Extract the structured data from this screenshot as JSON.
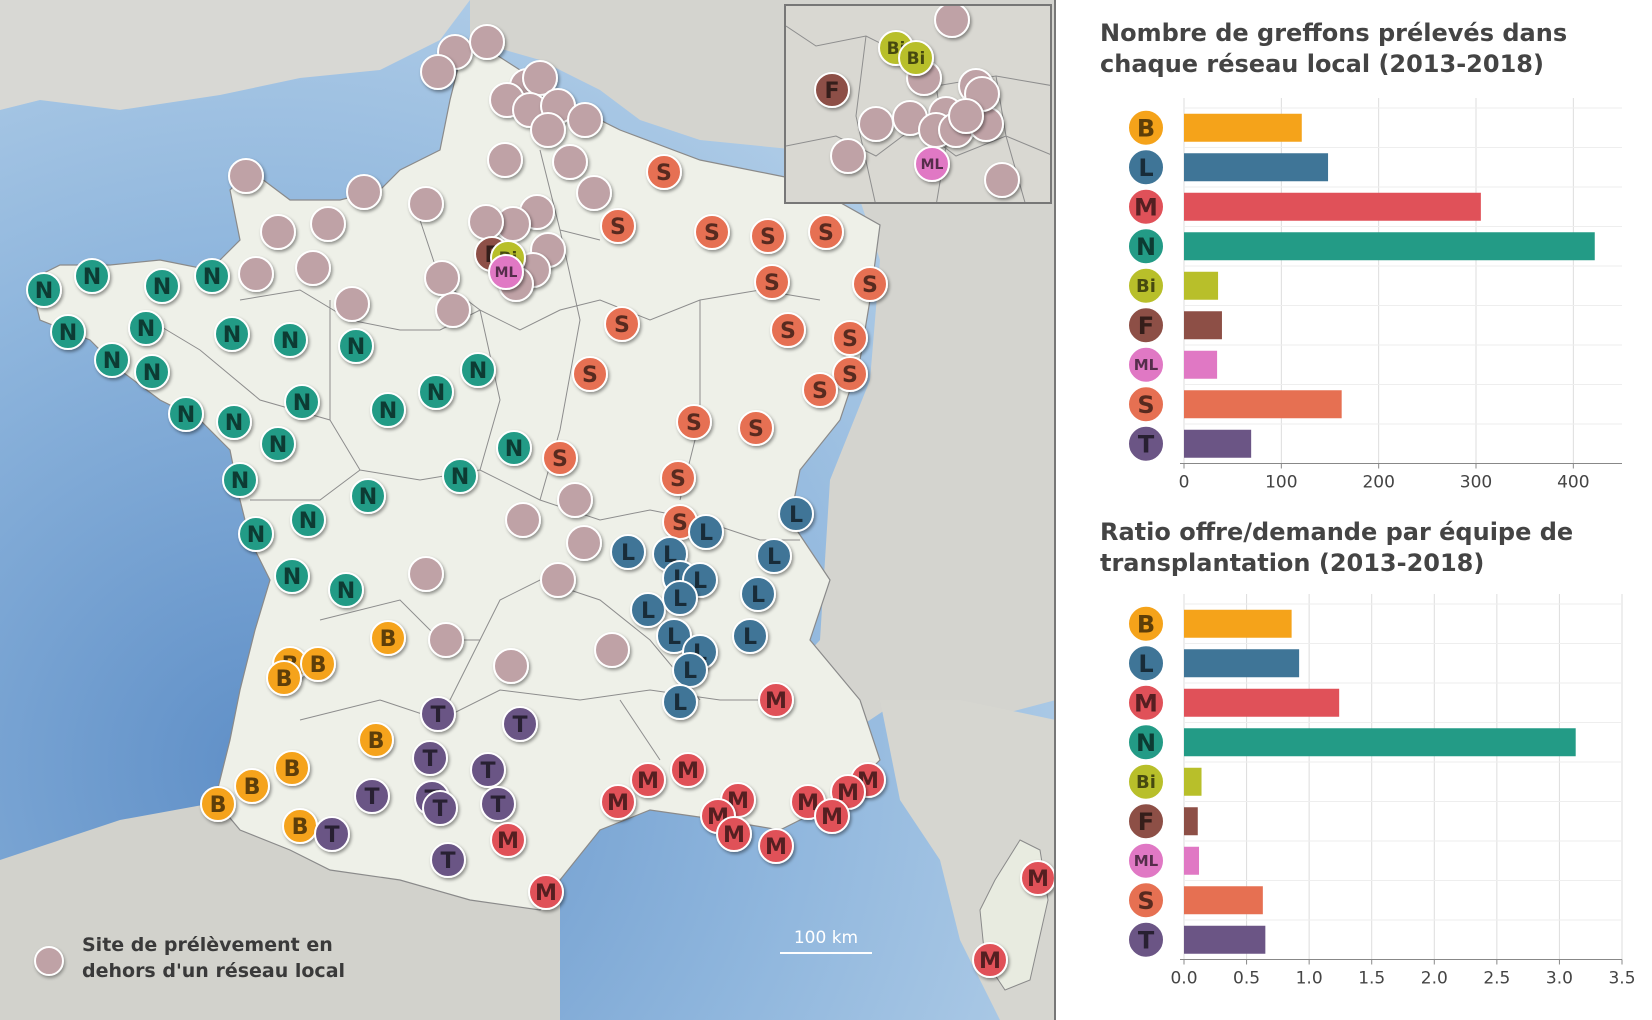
{
  "map": {
    "scale_label": "100 km",
    "legend_label": "Site de prélèvement en dehors d'un réseau local",
    "colors": {
      "B": "#f5a31a",
      "L": "#3f7597",
      "M": "#e05159",
      "N": "#239b86",
      "Bi": "#b8bf2a",
      "F": "#8d4f46",
      "ML": "#e078c4",
      "S": "#e67052",
      "T": "#6b5585",
      "outside": "#bfa2a6"
    }
  },
  "chart_data": [
    {
      "type": "bar",
      "title": "Nombre de greffons prélevés dans chaque réseau local (2013-2018)",
      "categories": [
        "B",
        "L",
        "M",
        "N",
        "Bi",
        "F",
        "ML",
        "S",
        "T"
      ],
      "values": [
        121,
        148,
        305,
        422,
        35,
        39,
        34,
        162,
        69
      ],
      "colors": [
        "#f5a31a",
        "#3f7597",
        "#e05159",
        "#239b86",
        "#b8bf2a",
        "#8d4f46",
        "#e078c4",
        "#e67052",
        "#6b5585"
      ],
      "xlim": [
        0,
        450
      ],
      "xticks": [
        0,
        100,
        200,
        300,
        400
      ],
      "xtick_labels": [
        "0",
        "100",
        "200",
        "300",
        "400"
      ],
      "grid": true
    },
    {
      "type": "bar",
      "title": "Ratio offre/demande par équipe de transplantation (2013-2018)",
      "categories": [
        "B",
        "L",
        "M",
        "N",
        "Bi",
        "F",
        "ML",
        "S",
        "T"
      ],
      "values": [
        0.86,
        0.92,
        1.24,
        3.13,
        0.14,
        0.11,
        0.12,
        0.63,
        0.65
      ],
      "colors": [
        "#f5a31a",
        "#3f7597",
        "#e05159",
        "#239b86",
        "#b8bf2a",
        "#8d4f46",
        "#e078c4",
        "#e67052",
        "#6b5585"
      ],
      "xlim": [
        0,
        3.5
      ],
      "xticks": [
        0,
        0.5,
        1,
        1.5,
        2,
        2.5,
        3,
        3.5
      ],
      "xtick_labels": [
        "0.0",
        "0.5",
        "1.0",
        "1.5",
        "2.0",
        "2.5",
        "3.0",
        "3.5"
      ],
      "grid": true
    }
  ]
}
